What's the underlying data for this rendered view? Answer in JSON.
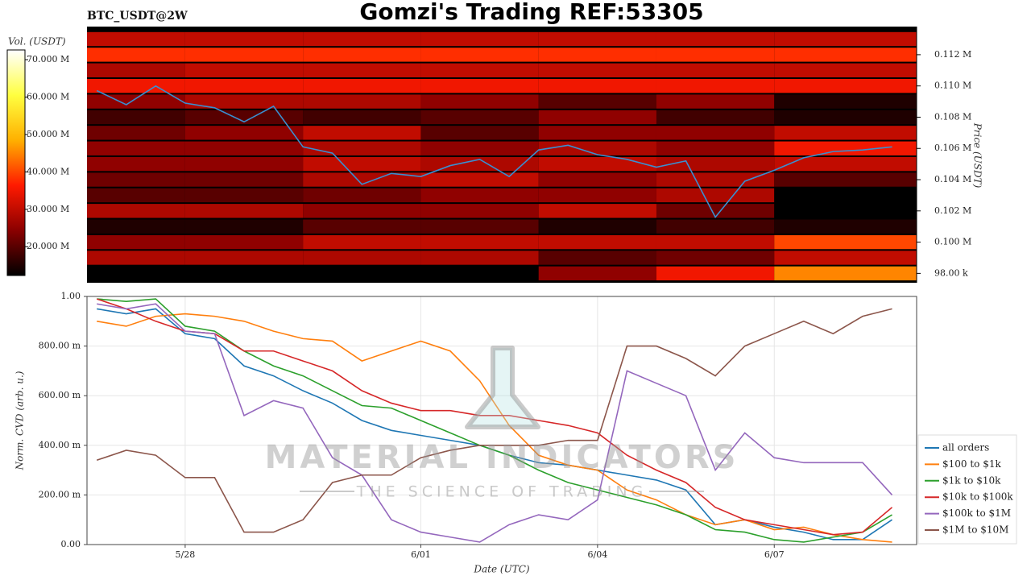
{
  "title": "Gomzi's Trading REF:53305",
  "watermark": {
    "brand": "MATERIAL INDICATORS",
    "tagline": "THE SCIENCE OF TRADING"
  },
  "chart_data": [
    {
      "type": "heatmap",
      "subtitle": "BTC_USDT@2W",
      "ylabel": "Price (USDT)",
      "colorbar_label": "Vol. (USDT)",
      "xlim": [
        "5/26 08:00",
        "6/09 10:00"
      ],
      "ylim": [
        97400,
        113800
      ],
      "yticks": [
        {
          "value": 98000,
          "label": "98.00 k"
        },
        {
          "value": 100000,
          "label": "0.100 M"
        },
        {
          "value": 102000,
          "label": "0.102 M"
        },
        {
          "value": 104000,
          "label": "0.104 M"
        },
        {
          "value": 106000,
          "label": "0.106 M"
        },
        {
          "value": 108000,
          "label": "0.108 M"
        },
        {
          "value": 110000,
          "label": "0.110 M"
        },
        {
          "value": 112000,
          "label": "0.112 M"
        }
      ],
      "x_bins": [
        "5/26 08:00",
        "5/28 00:00",
        "5/30 00:00",
        "6/01 00:00",
        "6/03 00:00",
        "6/05 00:00",
        "6/07 00:00",
        "6/09 10:00"
      ],
      "y_bins": [
        97500,
        98500,
        99500,
        100500,
        101500,
        102500,
        103500,
        104500,
        105500,
        106500,
        107500,
        108500,
        109500,
        110500,
        111500,
        112500,
        113500
      ],
      "values": [
        [
          12000000,
          12000000,
          12000000,
          12000000,
          25000000,
          35000000,
          45000000
        ],
        [
          28000000,
          28000000,
          28000000,
          28000000,
          20000000,
          22000000,
          30000000
        ],
        [
          25000000,
          25000000,
          30000000,
          30000000,
          30000000,
          30000000,
          40000000
        ],
        [
          15000000,
          15000000,
          20000000,
          20000000,
          15000000,
          18000000,
          15000000
        ],
        [
          28000000,
          28000000,
          25000000,
          25000000,
          30000000,
          22000000,
          12000000
        ],
        [
          20000000,
          20000000,
          22000000,
          25000000,
          25000000,
          28000000,
          12000000
        ],
        [
          22000000,
          22000000,
          28000000,
          30000000,
          25000000,
          28000000,
          20000000
        ],
        [
          25000000,
          25000000,
          30000000,
          28000000,
          30000000,
          28000000,
          30000000
        ],
        [
          25000000,
          25000000,
          28000000,
          25000000,
          28000000,
          25000000,
          35000000
        ],
        [
          22000000,
          25000000,
          30000000,
          20000000,
          25000000,
          25000000,
          30000000
        ],
        [
          18000000,
          20000000,
          18000000,
          20000000,
          25000000,
          18000000,
          15000000
        ],
        [
          25000000,
          28000000,
          28000000,
          25000000,
          20000000,
          25000000,
          15000000
        ],
        [
          35000000,
          35000000,
          35000000,
          35000000,
          35000000,
          35000000,
          35000000
        ],
        [
          28000000,
          30000000,
          30000000,
          30000000,
          30000000,
          30000000,
          30000000
        ],
        [
          38000000,
          38000000,
          38000000,
          38000000,
          38000000,
          38000000,
          38000000
        ],
        [
          30000000,
          30000000,
          30000000,
          30000000,
          30000000,
          30000000,
          30000000
        ]
      ],
      "colorscale": [
        "#000000",
        "#8a0000",
        "#ff1a00",
        "#ffb000",
        "#ffff40",
        "#ffffff"
      ],
      "clim": [
        12300000,
        72600000
      ],
      "cticks": [
        {
          "value": 20000000,
          "label": "20.000 M"
        },
        {
          "value": 30000000,
          "label": "30.000 M"
        },
        {
          "value": 40000000,
          "label": "40.000 M"
        },
        {
          "value": 50000000,
          "label": "50.000 M"
        },
        {
          "value": 60000000,
          "label": "60.000 M"
        },
        {
          "value": 70000000,
          "label": "70.000 M"
        }
      ],
      "line": {
        "color": "#3a8fd0",
        "x": [
          "5/26 12:00",
          "5/27 00:00",
          "5/27 12:00",
          "5/28 00:00",
          "5/28 12:00",
          "5/29 00:00",
          "5/29 12:00",
          "5/30 00:00",
          "5/30 12:00",
          "5/31 00:00",
          "5/31 12:00",
          "6/01 00:00",
          "6/01 12:00",
          "6/02 00:00",
          "6/02 12:00",
          "6/03 00:00",
          "6/03 12:00",
          "6/04 00:00",
          "6/04 12:00",
          "6/05 00:00",
          "6/05 12:00",
          "6/06 00:00",
          "6/06 12:00",
          "6/07 00:00",
          "6/07 12:00",
          "6/08 00:00",
          "6/08 12:00",
          "6/09 00:00"
        ],
        "values": [
          109700,
          108800,
          110000,
          108900,
          108600,
          107700,
          108700,
          106100,
          105700,
          103700,
          104400,
          104200,
          104900,
          105300,
          104200,
          105900,
          106200,
          105600,
          105300,
          104800,
          105200,
          101600,
          103900,
          104600,
          105400,
          105800,
          105900,
          106100
        ]
      }
    },
    {
      "type": "line",
      "xlabel": "Date (UTC)",
      "ylabel": "Norm. CVD (arb. u.)",
      "grid": true,
      "legend": "lower right outside",
      "xlim": [
        "5/26 08:00",
        "6/09 10:00"
      ],
      "xticks": [
        "5/28",
        "6/01",
        "6/04",
        "6/07"
      ],
      "ylim": [
        0,
        1
      ],
      "yticks": [
        {
          "value": 0,
          "label": "0.00"
        },
        {
          "value": 0.2,
          "label": "200.00 m"
        },
        {
          "value": 0.4,
          "label": "400.00 m"
        },
        {
          "value": 0.6,
          "label": "600.00 m"
        },
        {
          "value": 0.8,
          "label": "800.00 m"
        },
        {
          "value": 1,
          "label": "1.00"
        }
      ],
      "x": [
        "5/26 12:00",
        "5/27 00:00",
        "5/27 12:00",
        "5/28 00:00",
        "5/28 12:00",
        "5/29 00:00",
        "5/29 12:00",
        "5/30 00:00",
        "5/30 12:00",
        "5/31 00:00",
        "5/31 12:00",
        "6/01 00:00",
        "6/01 12:00",
        "6/02 00:00",
        "6/02 12:00",
        "6/03 00:00",
        "6/03 12:00",
        "6/04 00:00",
        "6/04 12:00",
        "6/05 00:00",
        "6/05 12:00",
        "6/06 00:00",
        "6/06 12:00",
        "6/07 00:00",
        "6/07 12:00",
        "6/08 00:00",
        "6/08 12:00",
        "6/09 00:00"
      ],
      "series": [
        {
          "name": "all orders",
          "color": "#1f77b4",
          "values": [
            0.95,
            0.93,
            0.95,
            0.85,
            0.83,
            0.72,
            0.68,
            0.62,
            0.57,
            0.5,
            0.46,
            0.44,
            0.42,
            0.4,
            0.36,
            0.33,
            0.32,
            0.3,
            0.28,
            0.26,
            0.22,
            0.08,
            0.1,
            0.07,
            0.05,
            0.02,
            0.02,
            0.1
          ]
        },
        {
          "name": "$100 to $1k",
          "color": "#ff7f0e",
          "values": [
            0.9,
            0.88,
            0.92,
            0.93,
            0.92,
            0.9,
            0.86,
            0.83,
            0.82,
            0.74,
            0.78,
            0.82,
            0.78,
            0.66,
            0.48,
            0.36,
            0.32,
            0.3,
            0.22,
            0.18,
            0.12,
            0.08,
            0.1,
            0.06,
            0.07,
            0.04,
            0.02,
            0.01
          ]
        },
        {
          "name": "$1k to $10k",
          "color": "#2ca02c",
          "values": [
            0.99,
            0.98,
            0.99,
            0.88,
            0.86,
            0.78,
            0.72,
            0.68,
            0.62,
            0.56,
            0.55,
            0.5,
            0.45,
            0.4,
            0.36,
            0.3,
            0.25,
            0.22,
            0.19,
            0.16,
            0.12,
            0.06,
            0.05,
            0.02,
            0.01,
            0.03,
            0.05,
            0.12
          ]
        },
        {
          "name": "$10k to $100k",
          "color": "#d62728",
          "values": [
            0.99,
            0.95,
            0.9,
            0.86,
            0.85,
            0.78,
            0.78,
            0.74,
            0.7,
            0.62,
            0.57,
            0.54,
            0.54,
            0.52,
            0.52,
            0.5,
            0.48,
            0.45,
            0.36,
            0.3,
            0.25,
            0.15,
            0.1,
            0.08,
            0.06,
            0.04,
            0.05,
            0.15
          ]
        },
        {
          "name": "$100k to $1M",
          "color": "#9467bd",
          "values": [
            0.97,
            0.95,
            0.97,
            0.86,
            0.85,
            0.52,
            0.58,
            0.55,
            0.35,
            0.28,
            0.1,
            0.05,
            0.03,
            0.01,
            0.08,
            0.12,
            0.1,
            0.18,
            0.7,
            0.65,
            0.6,
            0.3,
            0.45,
            0.35,
            0.33,
            0.33,
            0.33,
            0.2
          ]
        },
        {
          "name": "$1M to $10M",
          "color": "#8c564b",
          "values": [
            0.34,
            0.38,
            0.36,
            0.27,
            0.27,
            0.05,
            0.05,
            0.1,
            0.25,
            0.28,
            0.28,
            0.35,
            0.38,
            0.4,
            0.4,
            0.4,
            0.42,
            0.42,
            0.8,
            0.8,
            0.75,
            0.68,
            0.8,
            0.85,
            0.9,
            0.85,
            0.92,
            0.95
          ]
        }
      ]
    }
  ]
}
